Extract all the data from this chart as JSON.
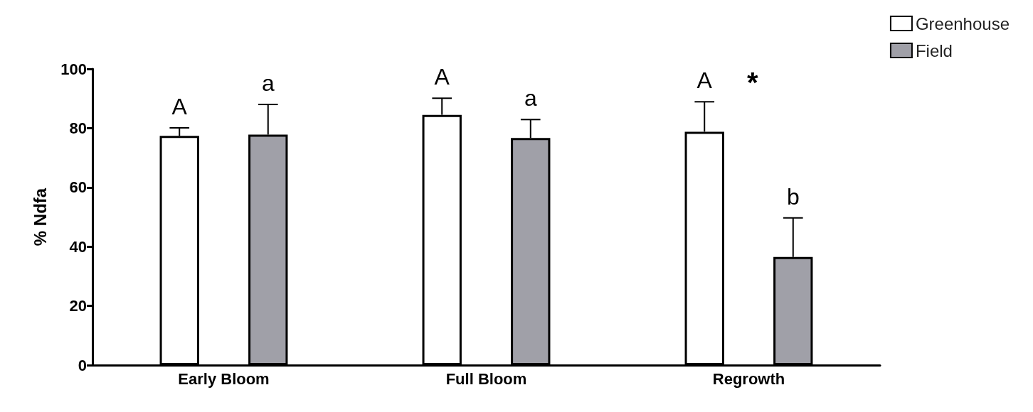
{
  "chart_data": {
    "type": "bar",
    "ylabel": "% Ndfa",
    "categories": [
      "Early Bloom",
      "Full Bloom",
      "Regrowth"
    ],
    "series": [
      {
        "name": "Greenhouse",
        "color": "#ffffff",
        "values": [
          77.4,
          84.5,
          78.8
        ],
        "errors": [
          [
            77.4,
            80.1
          ],
          [
            84.5,
            90.1
          ],
          [
            78.8,
            88.9
          ]
        ],
        "value_labels": [
          "A",
          "A",
          "A"
        ]
      },
      {
        "name": "Field",
        "color": "#a0a0a8",
        "values": [
          77.8,
          76.7,
          36.5
        ],
        "errors": [
          [
            77.8,
            88.0
          ],
          [
            76.7,
            82.9
          ],
          [
            36.5,
            49.7
          ]
        ],
        "value_labels": [
          "a",
          "a",
          "b"
        ]
      }
    ],
    "ylim": [
      0,
      100
    ],
    "yticks": [
      0,
      20,
      40,
      60,
      80,
      100
    ],
    "grid": false,
    "legend": "top right",
    "annotations": [
      "*"
    ]
  }
}
